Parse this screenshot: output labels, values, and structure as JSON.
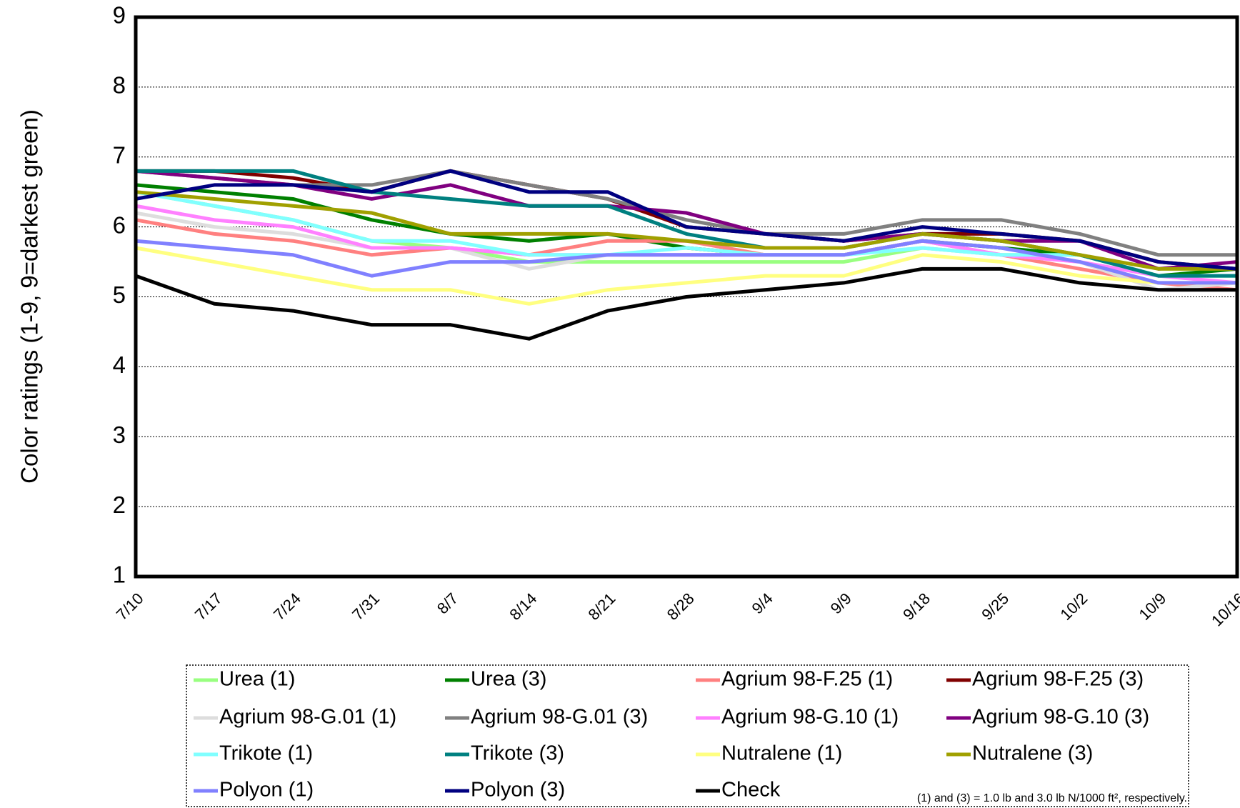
{
  "chart_data": {
    "type": "line",
    "y_label": "Color ratings (1-9, 9=darkest green)",
    "footnote": "(1) and (3) = 1.0 lb and 3.0 lb N/1000 ft², respectively.",
    "categories": [
      "7/10",
      "7/17",
      "7/24",
      "7/31",
      "8/7",
      "8/14",
      "8/21",
      "8/28",
      "9/4",
      "9/9",
      "9/18",
      "9/25",
      "10/2",
      "10/9",
      "10/16"
    ],
    "ylim": [
      1,
      9
    ],
    "yticks": [
      1,
      2,
      3,
      4,
      5,
      6,
      7,
      8,
      9
    ],
    "grid": true,
    "series": [
      {
        "name": "Urea (1)",
        "color": "#99ff80",
        "values": [
          6.5,
          6.3,
          6.1,
          5.8,
          5.7,
          5.5,
          5.5,
          5.5,
          5.5,
          5.5,
          5.7,
          5.6,
          5.6,
          5.3,
          5.3
        ]
      },
      {
        "name": "Urea (3)",
        "color": "#008000",
        "values": [
          6.6,
          6.5,
          6.4,
          6.1,
          5.9,
          5.8,
          5.9,
          5.7,
          5.6,
          5.6,
          5.8,
          5.7,
          5.6,
          5.3,
          5.4
        ]
      },
      {
        "name": "Agrium 98-F.25 (1)",
        "color": "#ff8080",
        "values": [
          6.1,
          5.9,
          5.8,
          5.6,
          5.7,
          5.6,
          5.8,
          5.8,
          5.6,
          5.6,
          5.8,
          5.6,
          5.4,
          5.2,
          5.1
        ]
      },
      {
        "name": "Agrium 98-F.25 (3)",
        "color": "#800000",
        "values": [
          6.8,
          6.8,
          6.7,
          6.5,
          6.8,
          6.6,
          6.4,
          6.0,
          5.9,
          5.8,
          5.9,
          5.9,
          5.8,
          5.5,
          5.4
        ]
      },
      {
        "name": "Agrium 98-G.01 (1)",
        "color": "#dddddd",
        "values": [
          6.2,
          6.0,
          5.9,
          5.7,
          5.7,
          5.4,
          5.6,
          5.6,
          5.6,
          5.6,
          5.7,
          5.6,
          5.5,
          5.1,
          5.2
        ]
      },
      {
        "name": "Agrium 98-G.01 (3)",
        "color": "#808080",
        "values": [
          6.8,
          6.7,
          6.6,
          6.6,
          6.8,
          6.6,
          6.4,
          6.1,
          5.9,
          5.9,
          6.1,
          6.1,
          5.9,
          5.6,
          5.6
        ]
      },
      {
        "name": "Agrium 98-G.10 (1)",
        "color": "#ff80ff",
        "values": [
          6.3,
          6.1,
          6.0,
          5.7,
          5.7,
          5.6,
          5.6,
          5.6,
          5.6,
          5.6,
          5.8,
          5.6,
          5.5,
          5.3,
          5.2
        ]
      },
      {
        "name": "Agrium 98-G.10 (3)",
        "color": "#800080",
        "values": [
          6.8,
          6.7,
          6.6,
          6.4,
          6.6,
          6.3,
          6.3,
          6.2,
          5.9,
          5.8,
          5.9,
          5.8,
          5.8,
          5.4,
          5.5
        ]
      },
      {
        "name": "Trikote (1)",
        "color": "#80ffff",
        "values": [
          6.5,
          6.3,
          6.1,
          5.8,
          5.8,
          5.6,
          5.6,
          5.7,
          5.6,
          5.6,
          5.7,
          5.6,
          5.6,
          5.3,
          5.3
        ]
      },
      {
        "name": "Trikote (3)",
        "color": "#008080",
        "values": [
          6.8,
          6.8,
          6.8,
          6.5,
          6.4,
          6.3,
          6.3,
          5.9,
          5.7,
          5.7,
          5.9,
          5.8,
          5.6,
          5.3,
          5.3
        ]
      },
      {
        "name": "Nutralene (1)",
        "color": "#ffff80",
        "values": [
          5.7,
          5.5,
          5.3,
          5.1,
          5.1,
          4.9,
          5.1,
          5.2,
          5.3,
          5.3,
          5.6,
          5.5,
          5.3,
          5.2,
          5.2
        ]
      },
      {
        "name": "Nutralene (3)",
        "color": "#a0a000",
        "values": [
          6.5,
          6.4,
          6.3,
          6.2,
          5.9,
          5.9,
          5.9,
          5.8,
          5.7,
          5.7,
          5.9,
          5.8,
          5.6,
          5.4,
          5.4
        ]
      },
      {
        "name": "Polyon (1)",
        "color": "#8080ff",
        "values": [
          5.8,
          5.7,
          5.6,
          5.3,
          5.5,
          5.5,
          5.6,
          5.6,
          5.6,
          5.6,
          5.8,
          5.7,
          5.5,
          5.2,
          5.2
        ]
      },
      {
        "name": "Polyon (3)",
        "color": "#000080",
        "values": [
          6.4,
          6.6,
          6.6,
          6.5,
          6.8,
          6.5,
          6.5,
          6.0,
          5.9,
          5.8,
          6.0,
          5.9,
          5.8,
          5.5,
          5.4
        ]
      },
      {
        "name": "Check",
        "color": "#000000",
        "values": [
          5.3,
          4.9,
          4.8,
          4.6,
          4.6,
          4.4,
          4.8,
          5.0,
          5.1,
          5.2,
          5.4,
          5.4,
          5.2,
          5.1,
          5.1
        ]
      }
    ]
  }
}
